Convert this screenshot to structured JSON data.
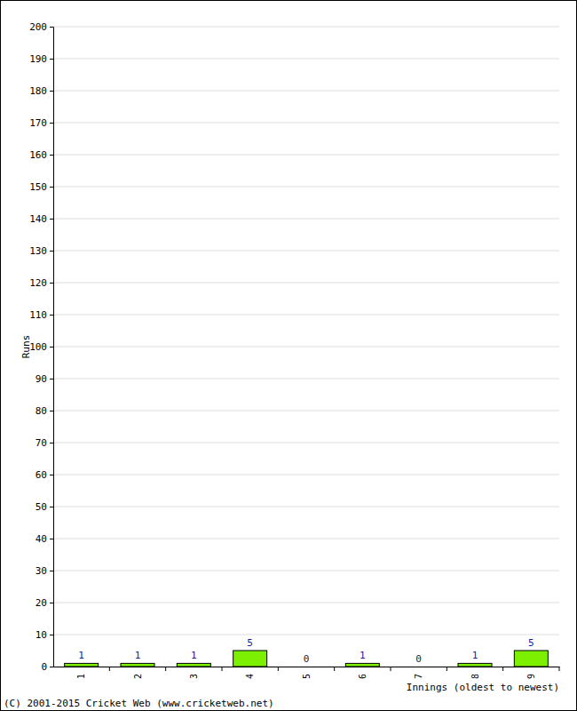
{
  "chart_data": {
    "type": "bar",
    "categories": [
      "1",
      "2",
      "3",
      "4",
      "5",
      "6",
      "7",
      "8",
      "9"
    ],
    "values": [
      1,
      1,
      1,
      5,
      0,
      1,
      0,
      1,
      5
    ],
    "color": "#7cf000",
    "xlabel": "Innings (oldest to newest)",
    "ylabel": "Runs",
    "ylim": [
      0,
      200
    ],
    "yticks": [
      0,
      10,
      20,
      30,
      40,
      50,
      60,
      70,
      80,
      90,
      100,
      110,
      120,
      130,
      140,
      150,
      160,
      170,
      180,
      190,
      200
    ],
    "grid": true,
    "data_labels": true,
    "annotations": [
      "(C) 2001-2015 Cricket Web (www.cricketweb.net)"
    ]
  }
}
